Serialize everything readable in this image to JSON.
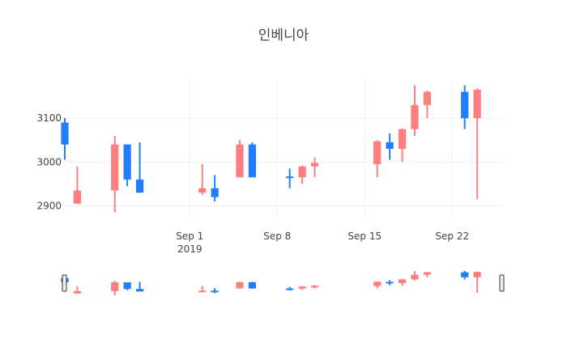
{
  "chart_data": {
    "type": "candlestick",
    "title": "인베니아",
    "xlabel": "",
    "ylabel": "",
    "ylim": [
      2875,
      3185
    ],
    "xlim": [
      "2019-08-22",
      "2019-09-26"
    ],
    "x_ticks": [
      {
        "date": "2019-09-01",
        "label": "Sep 1",
        "sublabel": "2019"
      },
      {
        "date": "2019-09-08",
        "label": "Sep 8",
        "sublabel": ""
      },
      {
        "date": "2019-09-15",
        "label": "Sep 15",
        "sublabel": ""
      },
      {
        "date": "2019-09-22",
        "label": "Sep 22",
        "sublabel": ""
      }
    ],
    "y_ticks": [
      {
        "value": 2900,
        "label": "2900"
      },
      {
        "value": 3000,
        "label": "3000"
      },
      {
        "value": 3100,
        "label": "3100"
      }
    ],
    "grid": true,
    "legend": false,
    "range_slider": true,
    "colors": {
      "increasing": "#ff7f7f",
      "decreasing": "#1f7fff",
      "grid": "#eeeeee"
    },
    "candles": [
      {
        "date": "2019-08-22",
        "open": 3090,
        "high": 3100,
        "low": 3005,
        "close": 3040
      },
      {
        "date": "2019-08-23",
        "open": 2905,
        "high": 2990,
        "low": 2905,
        "close": 2935
      },
      {
        "date": "2019-08-26",
        "open": 2935,
        "high": 3060,
        "low": 2885,
        "close": 3040
      },
      {
        "date": "2019-08-27",
        "open": 3040,
        "high": 3040,
        "low": 2945,
        "close": 2960
      },
      {
        "date": "2019-08-28",
        "open": 2960,
        "high": 3045,
        "low": 2930,
        "close": 2930
      },
      {
        "date": "2019-09-02",
        "open": 2930,
        "high": 2995,
        "low": 2925,
        "close": 2940
      },
      {
        "date": "2019-09-03",
        "open": 2940,
        "high": 2970,
        "low": 2910,
        "close": 2920
      },
      {
        "date": "2019-09-05",
        "open": 2965,
        "high": 3050,
        "low": 2965,
        "close": 3040
      },
      {
        "date": "2019-09-06",
        "open": 3040,
        "high": 3045,
        "low": 2965,
        "close": 2965
      },
      {
        "date": "2019-09-09",
        "open": 2967,
        "high": 2985,
        "low": 2940,
        "close": 2965
      },
      {
        "date": "2019-09-10",
        "open": 2965,
        "high": 2992,
        "low": 2950,
        "close": 2990
      },
      {
        "date": "2019-09-11",
        "open": 2990,
        "high": 3010,
        "low": 2965,
        "close": 2998
      },
      {
        "date": "2019-09-16",
        "open": 2995,
        "high": 3050,
        "low": 2965,
        "close": 3047
      },
      {
        "date": "2019-09-17",
        "open": 3045,
        "high": 3065,
        "low": 3005,
        "close": 3030
      },
      {
        "date": "2019-09-18",
        "open": 3030,
        "high": 3077,
        "low": 3000,
        "close": 3075
      },
      {
        "date": "2019-09-19",
        "open": 3075,
        "high": 3175,
        "low": 3060,
        "close": 3130
      },
      {
        "date": "2019-09-20",
        "open": 3130,
        "high": 3163,
        "low": 3100,
        "close": 3160
      },
      {
        "date": "2019-09-23",
        "open": 3160,
        "high": 3175,
        "low": 3075,
        "close": 3100
      },
      {
        "date": "2019-09-24",
        "open": 3100,
        "high": 3168,
        "low": 2915,
        "close": 3165
      }
    ]
  }
}
